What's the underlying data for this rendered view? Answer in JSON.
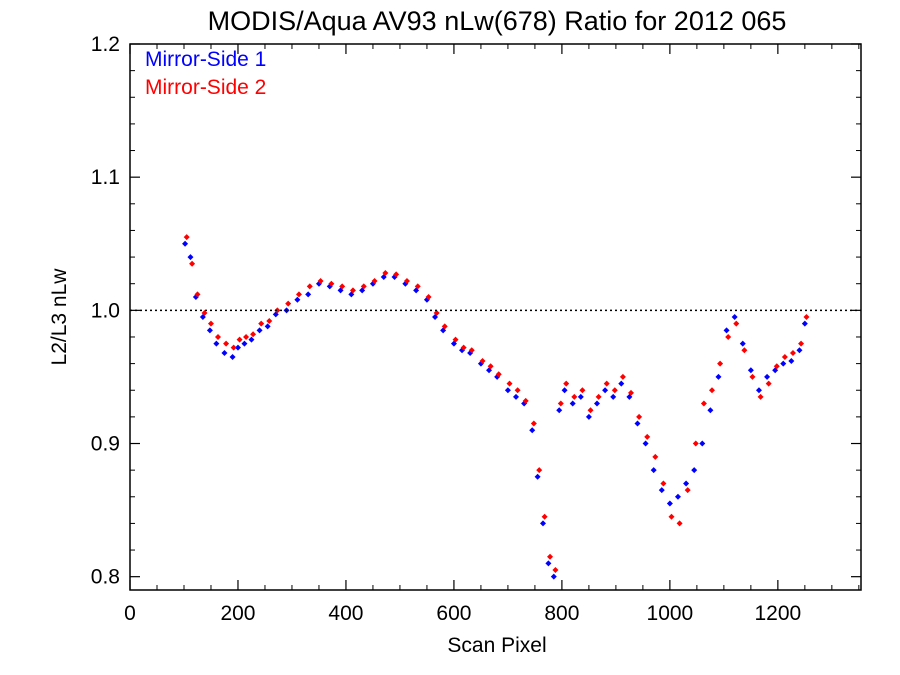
{
  "chart_data": {
    "type": "scatter",
    "title": "MODIS/Aqua AV93 nLw(678) Ratio for 2012 065",
    "xlabel": "Scan Pixel",
    "ylabel": "L2/L3 nLw",
    "xlim": [
      0,
      1354
    ],
    "ylim": [
      0.79,
      1.2
    ],
    "x_ticks": [
      0,
      200,
      400,
      600,
      800,
      1000,
      1200
    ],
    "x_tick_labels": [
      "0",
      "200",
      "400",
      "600",
      "800",
      "1000",
      "1200"
    ],
    "y_ticks": [
      0.8,
      0.9,
      1.0,
      1.1,
      1.2
    ],
    "y_tick_labels": [
      "0.8",
      "0.9",
      "1.0",
      "1.1",
      "1.2"
    ],
    "reference_line": {
      "y": 1.0,
      "style": "dotted"
    },
    "legend": {
      "placement": "top-left"
    },
    "colors": {
      "mirror_side_1": "#0000ff",
      "mirror_side_2": "#ff0000"
    },
    "series": [
      {
        "name": "Mirror-Side 1",
        "color": "#0000ff",
        "x": [
          102,
          112,
          122,
          135,
          148,
          160,
          175,
          190,
          200,
          212,
          225,
          240,
          255,
          270,
          290,
          310,
          330,
          350,
          370,
          390,
          410,
          430,
          450,
          470,
          490,
          510,
          530,
          550,
          565,
          580,
          600,
          615,
          630,
          650,
          665,
          680,
          700,
          715,
          730,
          745,
          755,
          765,
          775,
          785,
          795,
          805,
          820,
          835,
          850,
          865,
          880,
          895,
          910,
          925,
          940,
          955,
          970,
          985,
          1000,
          1015,
          1030,
          1045,
          1060,
          1075,
          1090,
          1105,
          1120,
          1135,
          1150,
          1165,
          1180,
          1195,
          1210,
          1225,
          1240,
          1250
        ],
        "y": [
          1.05,
          1.04,
          1.01,
          0.995,
          0.985,
          0.975,
          0.968,
          0.965,
          0.972,
          0.975,
          0.978,
          0.985,
          0.988,
          0.997,
          1.0,
          1.008,
          1.012,
          1.02,
          1.018,
          1.015,
          1.012,
          1.015,
          1.02,
          1.025,
          1.025,
          1.02,
          1.015,
          1.008,
          0.995,
          0.985,
          0.975,
          0.97,
          0.968,
          0.96,
          0.955,
          0.95,
          0.94,
          0.935,
          0.93,
          0.91,
          0.875,
          0.84,
          0.81,
          0.8,
          0.925,
          0.94,
          0.93,
          0.935,
          0.92,
          0.93,
          0.94,
          0.935,
          0.945,
          0.935,
          0.915,
          0.9,
          0.88,
          0.865,
          0.855,
          0.86,
          0.87,
          0.88,
          0.9,
          0.925,
          0.95,
          0.985,
          0.995,
          0.975,
          0.955,
          0.94,
          0.95,
          0.955,
          0.96,
          0.962,
          0.97,
          0.99
        ]
      },
      {
        "name": "Mirror-Side 2",
        "color": "#ff0000",
        "x": [
          105,
          115,
          125,
          138,
          150,
          163,
          178,
          192,
          203,
          215,
          228,
          243,
          258,
          273,
          293,
          313,
          333,
          353,
          373,
          393,
          413,
          433,
          453,
          473,
          493,
          513,
          533,
          553,
          568,
          583,
          603,
          618,
          633,
          653,
          668,
          683,
          703,
          718,
          733,
          748,
          758,
          768,
          778,
          788,
          798,
          808,
          823,
          838,
          853,
          868,
          883,
          898,
          913,
          928,
          943,
          958,
          973,
          988,
          1003,
          1018,
          1033,
          1048,
          1063,
          1078,
          1093,
          1108,
          1123,
          1138,
          1153,
          1168,
          1183,
          1198,
          1213,
          1228,
          1243,
          1253
        ],
        "y": [
          1.055,
          1.035,
          1.012,
          0.998,
          0.99,
          0.98,
          0.975,
          0.972,
          0.978,
          0.98,
          0.982,
          0.99,
          0.992,
          1.0,
          1.005,
          1.012,
          1.018,
          1.022,
          1.02,
          1.018,
          1.015,
          1.018,
          1.022,
          1.028,
          1.027,
          1.022,
          1.018,
          1.01,
          0.998,
          0.988,
          0.978,
          0.972,
          0.97,
          0.962,
          0.958,
          0.952,
          0.945,
          0.94,
          0.932,
          0.915,
          0.88,
          0.845,
          0.815,
          0.805,
          0.93,
          0.945,
          0.935,
          0.94,
          0.925,
          0.935,
          0.945,
          0.94,
          0.95,
          0.938,
          0.92,
          0.905,
          0.89,
          0.87,
          0.845,
          0.84,
          0.865,
          0.9,
          0.93,
          0.94,
          0.96,
          0.98,
          0.99,
          0.97,
          0.95,
          0.935,
          0.945,
          0.958,
          0.965,
          0.968,
          0.975,
          0.995
        ]
      }
    ]
  },
  "legend_items": [
    "Mirror-Side 1",
    "Mirror-Side 2"
  ]
}
